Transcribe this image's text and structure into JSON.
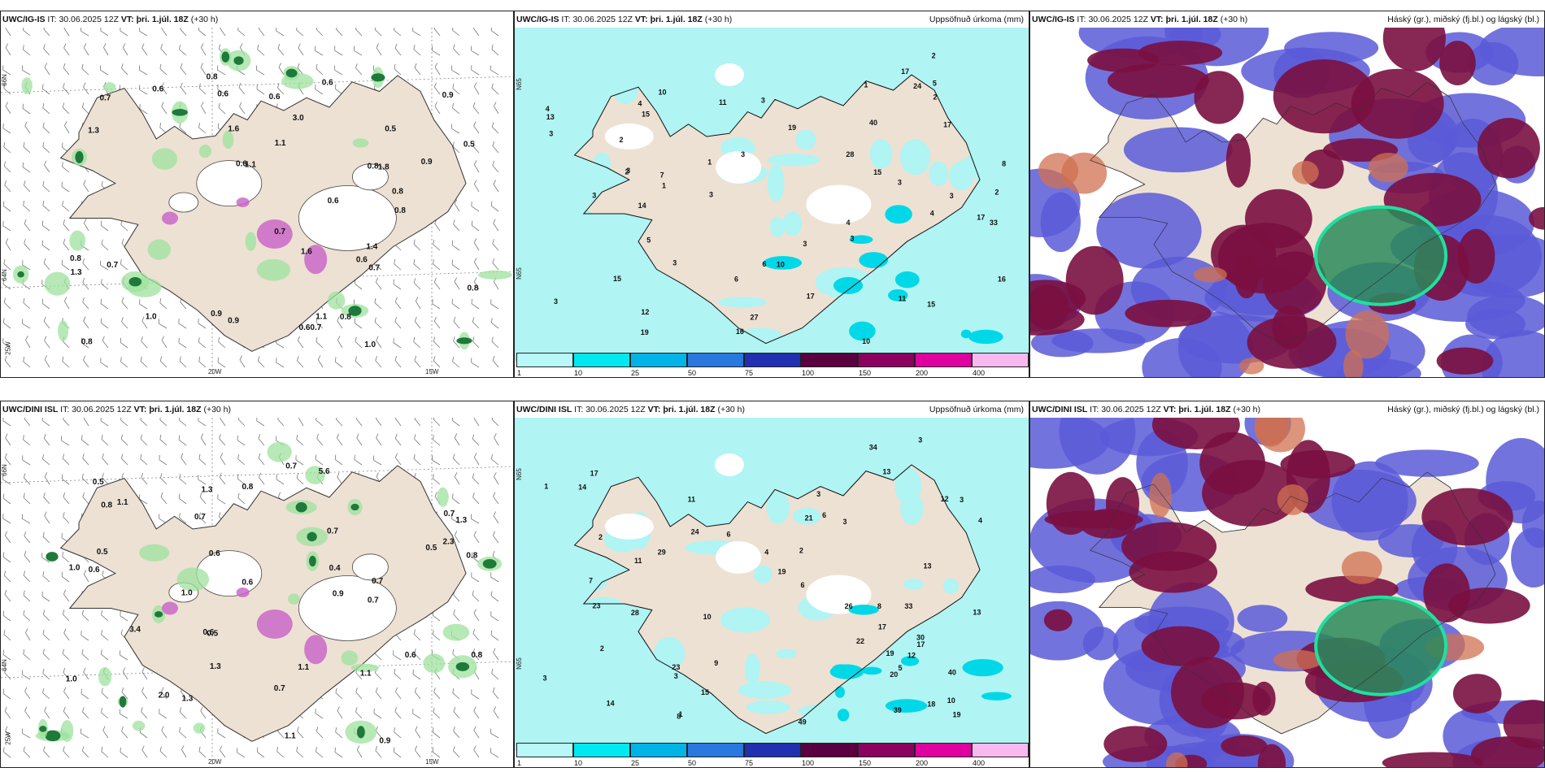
{
  "rows": [
    {
      "model": "UWC/IG-IS",
      "panels": [
        {
          "kind": "precip-type",
          "model_label": "UWC/IG-IS",
          "init_label": "IT:",
          "init_time": "30.06.2025 12Z",
          "valid_label": "VT:",
          "valid_time": "þri. 1.júl. 18Z",
          "lead": "(+30 h)",
          "right_title": "",
          "values": [
            "0.8",
            "0.7",
            "0.9",
            "0.7",
            "1.1",
            "0.7",
            "1.4",
            "0.8",
            "1.0",
            "0.60.7",
            "1.1",
            "0.7",
            "0.5",
            "1.1",
            "0.8",
            "0.6",
            "1.3",
            "1.6",
            "0.6",
            "0.6",
            "0.8",
            "0.8",
            "0.6",
            "0.5",
            "0.6",
            "1.3",
            "0.9",
            "1.8",
            "3.0",
            "0.6",
            "0.6",
            "0.9",
            "0.8",
            "0.8",
            "0.9",
            "0.8",
            "1.0",
            "1.6"
          ],
          "axis": {
            "lon1": "20W",
            "lon2": "15W",
            "lon3": "25W",
            "lat1": "66N",
            "lat2": "64N"
          }
        },
        {
          "kind": "accum",
          "model_label": "UWC/IG-IS",
          "init_label": "IT:",
          "init_time": "30.06.2025 12Z",
          "valid_label": "VT:",
          "valid_time": "þri. 1.júl. 18Z",
          "lead": "(+30 h)",
          "right_title": "Uppsöfnuð úrkoma (mm)",
          "values": [
            "2",
            "3",
            "3",
            "3",
            "3",
            "5",
            "4",
            "3",
            "17",
            "15",
            "17",
            "19",
            "14",
            "10",
            "4",
            "3",
            "3",
            "3",
            "10",
            "16",
            "6",
            "2",
            "3",
            "1",
            "3",
            "4",
            "2",
            "19",
            "13",
            "15",
            "28",
            "27",
            "24",
            "16",
            "4",
            "1",
            "5",
            "33",
            "17",
            "10",
            "40",
            "15",
            "8",
            "12",
            "7",
            "11",
            "15",
            "17",
            "11",
            "3",
            "3",
            "6",
            "1",
            "2",
            "2"
          ],
          "axis": {
            "lat1": "N65",
            "lat2": "N65"
          }
        },
        {
          "kind": "cloud",
          "model_label": "UWC/IG-IS",
          "init_label": "IT:",
          "init_time": "30.06.2025 12Z",
          "valid_label": "VT:",
          "valid_time": "þri. 1.júl. 18Z",
          "lead": "(+30 h)",
          "right_title": "Háský (gr.), miðský (fj.bl.) og lágský (bl.)",
          "values": []
        }
      ]
    },
    {
      "model": "UWC/DINI ISL",
      "panels": [
        {
          "kind": "precip-type",
          "model_label": "UWC/DINI ISL",
          "init_label": "IT:",
          "init_time": "30.06.2025 12Z",
          "valid_label": "VT:",
          "valid_time": "þri. 1.júl. 18Z",
          "lead": "(+30 h)",
          "right_title": "",
          "values": [
            "0.6",
            "0.7",
            "1.1",
            "0.9",
            "0.7",
            "1.1",
            "0.6",
            "0.8",
            "1.0",
            "0.8",
            "0.5",
            "0.7",
            "0.5",
            "1.3",
            "1.1",
            "0.7",
            "1.3",
            "0.6",
            "1.1",
            "0.5",
            "1.0",
            "0.6",
            "0.5",
            "0.7",
            "0.8",
            "0.6",
            "1.3",
            "2.3",
            "0.7",
            "0.9",
            "0.7",
            "1.3",
            "3.4",
            "0.8",
            "5.6",
            "2.0",
            "1.0",
            "0.4"
          ],
          "axis": {
            "lon1": "20W",
            "lon2": "15W",
            "lon3": "25W",
            "lat1": "66N",
            "lat2": "64N"
          }
        },
        {
          "kind": "accum",
          "model_label": "UWC/DINI ISL",
          "init_label": "IT:",
          "init_time": "30.06.2025 12Z",
          "valid_label": "VT:",
          "valid_time": "þri. 1.júl. 18Z",
          "lead": "(+30 h)",
          "right_title": "Uppsöfnuð úrkoma (mm)",
          "values": [
            "2",
            "3",
            "1",
            "2",
            "2",
            "12",
            "15",
            "19",
            "14",
            "17",
            "12",
            "28",
            "20",
            "8",
            "10",
            "6",
            "3",
            "4",
            "3",
            "3",
            "1",
            "3",
            "30",
            "39",
            "33",
            "34",
            "26",
            "13",
            "13",
            "11",
            "19",
            "17",
            "14",
            "40",
            "22",
            "23",
            "49",
            "10",
            "29",
            "23",
            "17",
            "24",
            "19",
            "21",
            "18",
            "11",
            "13",
            "7",
            "6",
            "6",
            "4",
            "3",
            "9",
            "8",
            "5"
          ],
          "axis": {
            "lat1": "N65",
            "lat2": "N65"
          }
        },
        {
          "kind": "cloud",
          "model_label": "UWC/DINI ISL",
          "init_label": "IT:",
          "init_time": "30.06.2025 12Z",
          "valid_label": "VT:",
          "valid_time": "þri. 1.júl. 18Z",
          "lead": "(+30 h)",
          "right_title": "Háský (gr.), miðský (fj.bl.) og lágský (bl.)",
          "values": []
        }
      ]
    }
  ],
  "colorbar": {
    "ticks": [
      "1",
      "10",
      "25",
      "50",
      "75",
      "100",
      "150",
      "200",
      "400",
      ""
    ],
    "colors": [
      "#b8f8f8",
      "#00e8f0",
      "#00b4e8",
      "#2878e0",
      "#2030b0",
      "#5a0040",
      "#8c0060",
      "#e000a0",
      "#f8b8f0"
    ]
  },
  "colors": {
    "land": "#ede1d3",
    "accum_shade": "#b0f4f4",
    "ocean_blue": "#5a5ad8",
    "cloud_dark": "#7a1040",
    "cloud_green": "#2a8a5a",
    "cloud_orange": "#d07050"
  }
}
